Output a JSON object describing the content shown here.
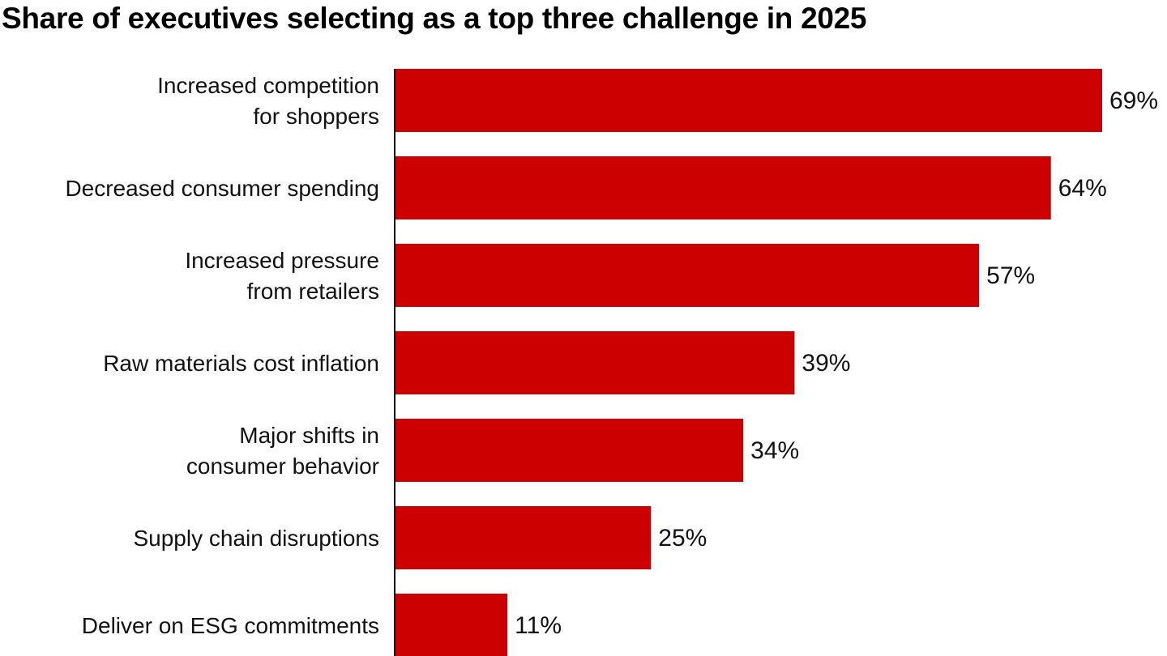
{
  "chart_data": {
    "type": "bar",
    "orientation": "horizontal",
    "title": "Share of executives selecting as a top three challenge in 2025",
    "categories": [
      "Increased competition\nfor shoppers",
      "Decreased consumer spending",
      "Increased pressure\nfrom retailers",
      "Raw materials cost inflation",
      "Major shifts in\nconsumer behavior",
      "Supply chain disruptions",
      "Deliver on ESG commitments"
    ],
    "values": [
      69,
      64,
      57,
      39,
      34,
      25,
      11
    ],
    "data_labels": [
      "69%",
      "64%",
      "57%",
      "39%",
      "34%",
      "25%",
      "11%"
    ],
    "unit": "%",
    "xlim": [
      0,
      69
    ],
    "grid": false,
    "legend": "none",
    "bar_color": "#cc0000",
    "axis_color": "#000000"
  }
}
